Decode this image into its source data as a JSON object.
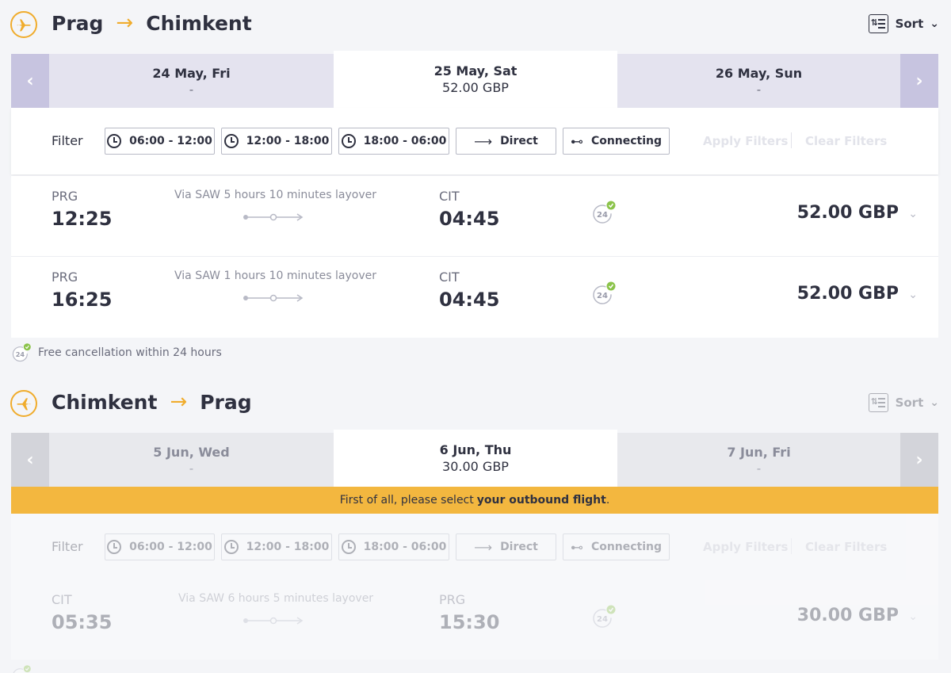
{
  "outbound": {
    "from": "Prag",
    "to": "Chimkent",
    "sort_label": "Sort",
    "dates": [
      {
        "date": "24 May, Fri",
        "price": "-"
      },
      {
        "date": "25 May, Sat",
        "price": "52.00 GBP"
      },
      {
        "date": "26 May, Sun",
        "price": "-"
      }
    ],
    "filter_label": "Filter",
    "chips": [
      "06:00 - 12:00",
      "12:00 - 18:00",
      "18:00 - 06:00",
      "Direct",
      "Connecting"
    ],
    "apply_label": "Apply Filters",
    "clear_label": "Clear Filters",
    "flights": [
      {
        "dep_code": "PRG",
        "dep_time": "12:25",
        "via": "Via SAW 5 hours 10 minutes layover",
        "arr_code": "CIT",
        "arr_time": "04:45",
        "price": "52.00 GBP"
      },
      {
        "dep_code": "PRG",
        "dep_time": "16:25",
        "via": "Via SAW 1 hours 10 minutes layover",
        "arr_code": "CIT",
        "arr_time": "04:45",
        "price": "52.00 GBP"
      }
    ],
    "note": "Free cancellation within 24 hours"
  },
  "inbound": {
    "from": "Chimkent",
    "to": "Prag",
    "sort_label": "Sort",
    "dates": [
      {
        "date": "5 Jun, Wed",
        "price": "-"
      },
      {
        "date": "6 Jun, Thu",
        "price": "30.00 GBP"
      },
      {
        "date": "7 Jun, Fri",
        "price": "-"
      }
    ],
    "warning_prefix": "First of all, please select",
    "warning_bold": "your outbound flight",
    "warning_suffix": ".",
    "filter_label": "Filter",
    "chips": [
      "06:00 - 12:00",
      "12:00 - 18:00",
      "18:00 - 06:00",
      "Direct",
      "Connecting"
    ],
    "apply_label": "Apply Filters",
    "clear_label": "Clear Filters",
    "flights": [
      {
        "dep_code": "CIT",
        "dep_time": "05:35",
        "via": "Via SAW 6 hours 5 minutes layover",
        "arr_code": "PRG",
        "arr_time": "15:30",
        "price": "30.00 GBP"
      }
    ]
  },
  "free_icon_text": "24",
  "colors": {
    "accent": "#f0ac2c",
    "nav": "#c7c4e0",
    "datebar": "#e4e3ef",
    "warning": "#f3b73f",
    "check": "#8bc34a"
  }
}
